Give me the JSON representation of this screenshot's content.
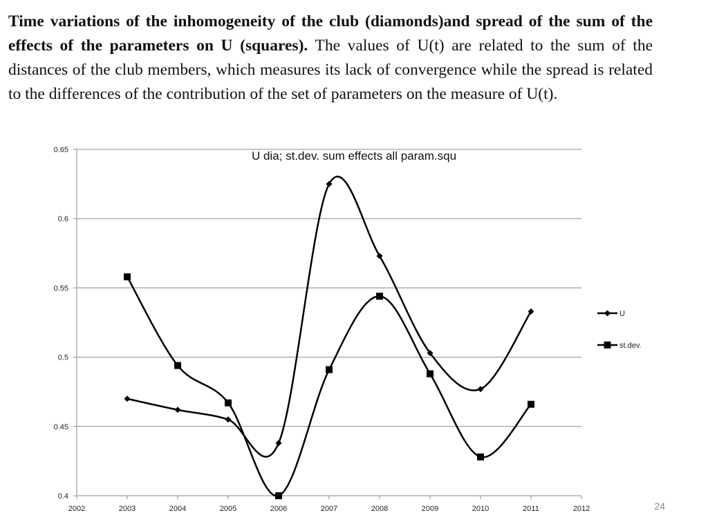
{
  "slide": {
    "caption_bold": "Time variations of the inhomogeneity of the club (diamonds)and spread of the sum of the effects of the parameters on U (squares).",
    "caption_text": "The values of U(t) are related to the sum of the distances of the club members, which measures its lack of convergence while the spread is related to the differences of the contribution of the set of parameters on the measure of U(t).",
    "page_number": "24"
  },
  "chart_data": {
    "type": "line",
    "title": "U dia; st.dev. sum effects all param.squ",
    "xlabel": "",
    "ylabel": "",
    "xlim": [
      2002,
      2012
    ],
    "ylim": [
      0.4,
      0.65
    ],
    "x_ticks": [
      "2002",
      "2003",
      "2004",
      "2005",
      "2006",
      "2007",
      "2008",
      "2009",
      "2010",
      "2011",
      "2012"
    ],
    "y_ticks": [
      "0.4",
      "0.45",
      "0.5",
      "0.55",
      "0.6",
      "0.65"
    ],
    "grid": "horizontal",
    "smooth": true,
    "legend_position": "right",
    "series": [
      {
        "name": "U",
        "marker": "diamond",
        "color": "#000000",
        "x": [
          2003,
          2004,
          2005,
          2006,
          2007,
          2008,
          2009,
          2010,
          2011
        ],
        "values": [
          0.47,
          0.462,
          0.455,
          0.438,
          0.625,
          0.573,
          0.503,
          0.477,
          0.533
        ]
      },
      {
        "name": "st.dev.",
        "marker": "square",
        "color": "#000000",
        "x": [
          2003,
          2004,
          2005,
          2006,
          2007,
          2008,
          2009,
          2010,
          2011
        ],
        "values": [
          0.558,
          0.494,
          0.467,
          0.4,
          0.491,
          0.544,
          0.488,
          0.428,
          0.466
        ]
      }
    ]
  }
}
